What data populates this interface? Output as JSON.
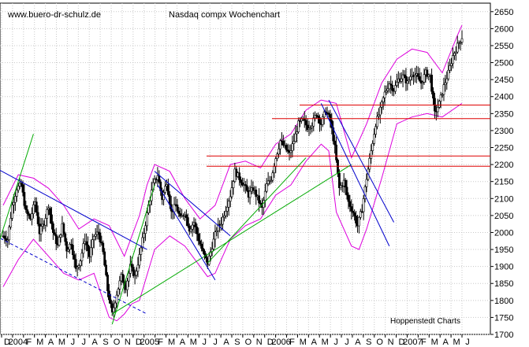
{
  "chart_data": {
    "type": "candlestick",
    "title": "Nasdaq compx Wochenchart",
    "watermark": "www.buero-dr-schulz.de",
    "source": "Hoppenstedt Charts",
    "ylim": [
      1700,
      2675
    ],
    "yticks": [
      1700,
      1750,
      1800,
      1850,
      1900,
      1950,
      2000,
      2050,
      2100,
      2150,
      2200,
      2250,
      2300,
      2350,
      2400,
      2450,
      2500,
      2550,
      2600,
      2650
    ],
    "month_labels": [
      "D",
      "2004",
      "F",
      "M",
      "A",
      "M",
      "J",
      "J",
      "A",
      "S",
      "O",
      "N",
      "D",
      "2005",
      "F",
      "M",
      "A",
      "M",
      "J",
      "J",
      "A",
      "S",
      "O",
      "N",
      "D",
      "2006",
      "F",
      "M",
      "A",
      "M",
      "J",
      "J",
      "A",
      "S",
      "O",
      "N",
      "D",
      "2007",
      "F",
      "M",
      "A",
      "M",
      "J"
    ],
    "support_resistance_levels": [
      2375,
      2335,
      2225,
      2195
    ],
    "price_path": [
      [
        0,
        1990
      ],
      [
        3,
        1980
      ],
      [
        6,
        2080
      ],
      [
        9,
        2130
      ],
      [
        12,
        2140
      ],
      [
        15,
        2060
      ],
      [
        18,
        2040
      ],
      [
        21,
        2090
      ],
      [
        24,
        2000
      ],
      [
        27,
        2030
      ],
      [
        30,
        2080
      ],
      [
        33,
        2000
      ],
      [
        36,
        1960
      ],
      [
        39,
        2020
      ],
      [
        42,
        1950
      ],
      [
        45,
        1970
      ],
      [
        48,
        1890
      ],
      [
        51,
        1920
      ],
      [
        54,
        1980
      ],
      [
        57,
        1930
      ],
      [
        60,
        1990
      ],
      [
        63,
        2000
      ],
      [
        66,
        1940
      ],
      [
        69,
        1830
      ],
      [
        72,
        1760
      ],
      [
        75,
        1820
      ],
      [
        78,
        1870
      ],
      [
        81,
        1840
      ],
      [
        84,
        1900
      ],
      [
        87,
        1870
      ],
      [
        90,
        1930
      ],
      [
        93,
        2000
      ],
      [
        96,
        2080
      ],
      [
        99,
        2140
      ],
      [
        102,
        2170
      ],
      [
        105,
        2100
      ],
      [
        108,
        2150
      ],
      [
        111,
        2060
      ],
      [
        114,
        2080
      ],
      [
        117,
        2040
      ],
      [
        120,
        2060
      ],
      [
        123,
        2010
      ],
      [
        126,
        2030
      ],
      [
        129,
        1980
      ],
      [
        132,
        1940
      ],
      [
        135,
        1910
      ],
      [
        138,
        1960
      ],
      [
        141,
        2010
      ],
      [
        144,
        2030
      ],
      [
        147,
        2070
      ],
      [
        150,
        2110
      ],
      [
        153,
        2180
      ],
      [
        156,
        2160
      ],
      [
        159,
        2140
      ],
      [
        162,
        2110
      ],
      [
        165,
        2130
      ],
      [
        168,
        2100
      ],
      [
        171,
        2070
      ],
      [
        174,
        2140
      ],
      [
        177,
        2160
      ],
      [
        180,
        2220
      ],
      [
        183,
        2270
      ],
      [
        186,
        2250
      ],
      [
        189,
        2230
      ],
      [
        192,
        2270
      ],
      [
        195,
        2320
      ],
      [
        198,
        2330
      ],
      [
        201,
        2310
      ],
      [
        204,
        2320
      ],
      [
        207,
        2350
      ],
      [
        210,
        2320
      ],
      [
        213,
        2360
      ],
      [
        216,
        2330
      ],
      [
        219,
        2250
      ],
      [
        222,
        2130
      ],
      [
        225,
        2150
      ],
      [
        228,
        2090
      ],
      [
        231,
        2060
      ],
      [
        234,
        2020
      ],
      [
        237,
        2070
      ],
      [
        240,
        2160
      ],
      [
        243,
        2240
      ],
      [
        246,
        2320
      ],
      [
        249,
        2360
      ],
      [
        252,
        2410
      ],
      [
        255,
        2440
      ],
      [
        258,
        2420
      ],
      [
        261,
        2450
      ],
      [
        264,
        2460
      ],
      [
        267,
        2440
      ],
      [
        270,
        2470
      ],
      [
        273,
        2460
      ],
      [
        276,
        2440
      ],
      [
        279,
        2470
      ],
      [
        282,
        2460
      ],
      [
        285,
        2350
      ],
      [
        288,
        2380
      ],
      [
        291,
        2430
      ],
      [
        294,
        2470
      ],
      [
        297,
        2520
      ],
      [
        300,
        2550
      ],
      [
        303,
        2575
      ]
    ],
    "bollinger_upper": [
      [
        0,
        2080
      ],
      [
        10,
        2170
      ],
      [
        20,
        2160
      ],
      [
        30,
        2130
      ],
      [
        40,
        2080
      ],
      [
        50,
        2010
      ],
      [
        60,
        2040
      ],
      [
        70,
        2020
      ],
      [
        80,
        1930
      ],
      [
        90,
        2050
      ],
      [
        95,
        2140
      ],
      [
        100,
        2200
      ],
      [
        110,
        2180
      ],
      [
        120,
        2100
      ],
      [
        130,
        2040
      ],
      [
        140,
        2080
      ],
      [
        150,
        2200
      ],
      [
        160,
        2210
      ],
      [
        170,
        2190
      ],
      [
        180,
        2260
      ],
      [
        190,
        2290
      ],
      [
        200,
        2360
      ],
      [
        210,
        2390
      ],
      [
        220,
        2380
      ],
      [
        230,
        2220
      ],
      [
        240,
        2320
      ],
      [
        250,
        2440
      ],
      [
        260,
        2510
      ],
      [
        270,
        2540
      ],
      [
        280,
        2530
      ],
      [
        290,
        2470
      ],
      [
        300,
        2580
      ],
      [
        303,
        2610
      ]
    ],
    "bollinger_lower": [
      [
        0,
        1840
      ],
      [
        10,
        1920
      ],
      [
        20,
        1980
      ],
      [
        30,
        1930
      ],
      [
        40,
        1880
      ],
      [
        50,
        1860
      ],
      [
        60,
        1880
      ],
      [
        70,
        1750
      ],
      [
        75,
        1740
      ],
      [
        80,
        1760
      ],
      [
        85,
        1790
      ],
      [
        90,
        1800
      ],
      [
        100,
        1950
      ],
      [
        110,
        1990
      ],
      [
        120,
        1960
      ],
      [
        130,
        1900
      ],
      [
        135,
        1870
      ],
      [
        140,
        1880
      ],
      [
        150,
        1980
      ],
      [
        160,
        2020
      ],
      [
        170,
        2040
      ],
      [
        180,
        2110
      ],
      [
        190,
        2140
      ],
      [
        200,
        2210
      ],
      [
        210,
        2260
      ],
      [
        215,
        2240
      ],
      [
        220,
        2060
      ],
      [
        230,
        1960
      ],
      [
        235,
        1950
      ],
      [
        240,
        2010
      ],
      [
        250,
        2160
      ],
      [
        260,
        2320
      ],
      [
        270,
        2340
      ],
      [
        280,
        2350
      ],
      [
        290,
        2340
      ],
      [
        303,
        2380
      ]
    ],
    "trendlines": [
      {
        "color": "#0000cc",
        "dashed": false,
        "points": [
          [
            -5,
            2190
          ],
          [
            95,
            1950
          ]
        ]
      },
      {
        "color": "#0000cc",
        "dashed": true,
        "points": [
          [
            -5,
            1990
          ],
          [
            95,
            1760
          ]
        ]
      },
      {
        "color": "#00aa00",
        "dashed": false,
        "points": [
          [
            -5,
            1940
          ],
          [
            20,
            2290
          ]
        ]
      },
      {
        "color": "#00aa00",
        "dashed": false,
        "points": [
          [
            72,
            1730
          ],
          [
            100,
            2140
          ]
        ]
      },
      {
        "color": "#00aa00",
        "dashed": false,
        "points": [
          [
            72,
            1760
          ],
          [
            230,
            2200
          ]
        ]
      },
      {
        "color": "#0000cc",
        "dashed": false,
        "points": [
          [
            100,
            2180
          ],
          [
            150,
            1990
          ]
        ]
      },
      {
        "color": "#0000cc",
        "dashed": false,
        "points": [
          [
            102,
            2140
          ],
          [
            140,
            1860
          ]
        ]
      },
      {
        "color": "#00aa00",
        "dashed": false,
        "points": [
          [
            135,
            1910
          ],
          [
            200,
            2220
          ]
        ]
      },
      {
        "color": "#0000cc",
        "dashed": false,
        "points": [
          [
            215,
            2390
          ],
          [
            258,
            2030
          ]
        ]
      },
      {
        "color": "#0000cc",
        "dashed": false,
        "points": [
          [
            210,
            2380
          ],
          [
            255,
            1960
          ]
        ]
      }
    ]
  }
}
